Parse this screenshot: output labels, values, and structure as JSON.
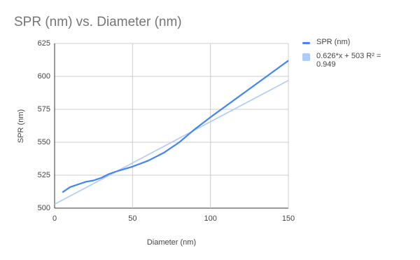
{
  "chart_data": {
    "type": "line",
    "title": "SPR (nm) vs. Diameter (nm)",
    "x_label": "Diameter (nm)",
    "y_label": "SPR (nm)",
    "xlim": [
      0,
      150
    ],
    "xticks": [
      0,
      50,
      100,
      150
    ],
    "ylim": [
      500,
      625
    ],
    "yticks": [
      500,
      525,
      550,
      575,
      600,
      625
    ],
    "grid": true,
    "legend": "right",
    "series": [
      {
        "name": "SPR (nm)",
        "color": "#4285f4",
        "width": 2.2,
        "x": [
          5,
          10,
          15,
          20,
          25,
          30,
          35,
          40,
          50,
          60,
          70,
          80,
          90,
          100,
          150
        ],
        "values": [
          512,
          516,
          518,
          520,
          521,
          523,
          526,
          528,
          531.5,
          536,
          542,
          550,
          560,
          569,
          612
        ]
      },
      {
        "name": "0.626*x + 503 R² = 0.949",
        "color": "#aecbfa",
        "width": 1.6,
        "x": [
          0,
          150
        ],
        "values": [
          503,
          596.9
        ]
      }
    ]
  }
}
